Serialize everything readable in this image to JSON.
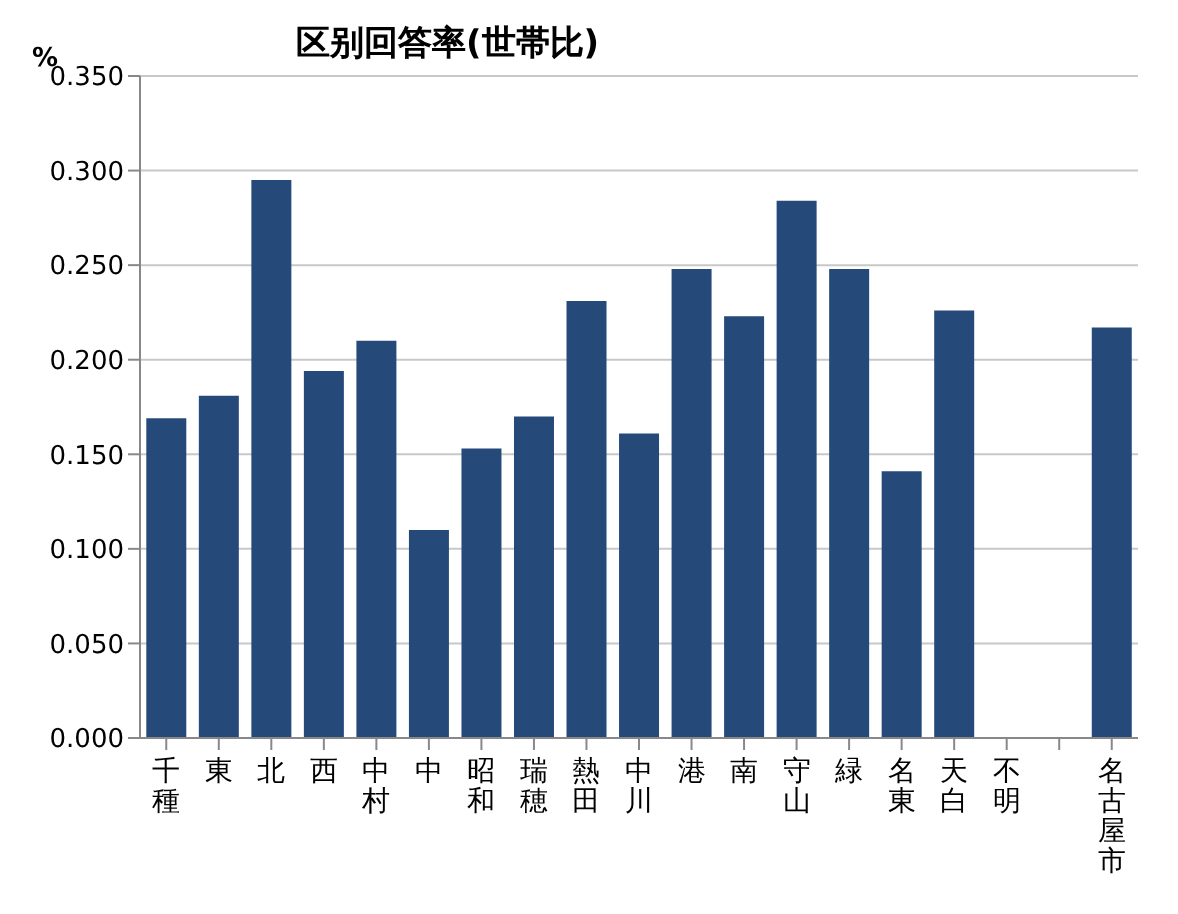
{
  "chart_data": {
    "type": "bar",
    "title": "区别回答率(世帯比)",
    "ylabel": "%",
    "categories": [
      "千種",
      "東",
      "北",
      "西",
      "中村",
      "中",
      "昭和",
      "瑞穂",
      "熱田",
      "中川",
      "港",
      "南",
      "守山",
      "緑",
      "名東",
      "天白",
      "不明",
      null,
      "名古屋市"
    ],
    "series": [
      {
        "color": "#254a7a",
        "values": [
          0.169,
          0.181,
          0.295,
          0.194,
          0.21,
          0.11,
          0.153,
          0.17,
          0.231,
          0.161,
          0.248,
          0.223,
          0.284,
          0.248,
          0.141,
          0.226,
          0,
          null,
          0.217
        ]
      }
    ],
    "ylim": [
      0,
      0.35
    ],
    "yticks": [
      {
        "value": 0,
        "label": "0.000"
      },
      {
        "value": 0.05,
        "label": "0.050"
      },
      {
        "value": 0.1,
        "label": "0.100"
      },
      {
        "value": 0.15,
        "label": "0.150"
      },
      {
        "value": 0.2,
        "label": "0.200"
      },
      {
        "value": 0.25,
        "label": "0.250"
      },
      {
        "value": 0.3,
        "label": "0.300"
      },
      {
        "value": 0.35,
        "label": "0.350"
      }
    ],
    "grid": "y"
  }
}
